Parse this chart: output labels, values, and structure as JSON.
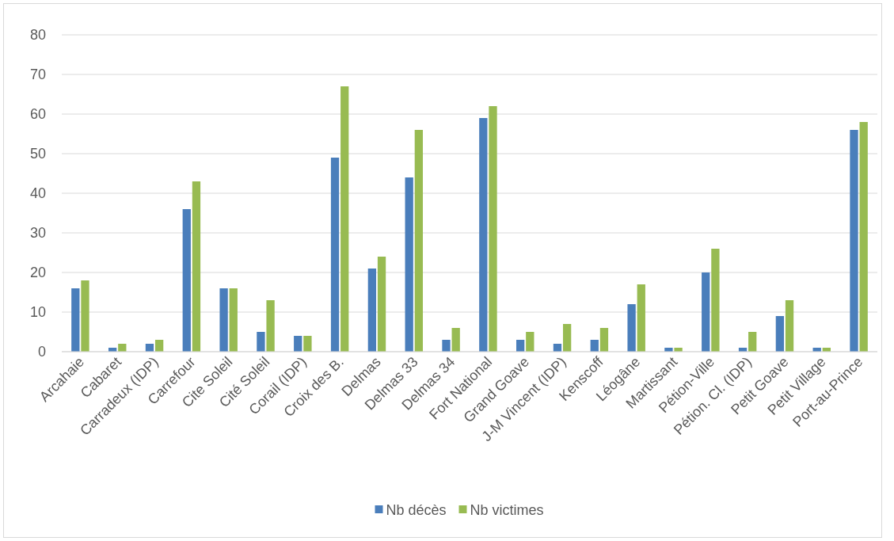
{
  "chart_data": {
    "type": "bar",
    "categories": [
      "Arcahaie",
      "Cabaret",
      "Carradeux (IDP)",
      "Carrefour",
      "Cite Soleil",
      "Cité Soleil",
      "Corail (IDP)",
      "Croix des B.",
      "Delmas",
      "Delmas 33",
      "Delmas 34",
      "Fort National",
      "Grand Goave",
      "J-M Vincent (IDP)",
      "Kenscoff",
      "Léogâne",
      "Martissant",
      "Pétion-Ville",
      "Pétion. Cl. (IDP)",
      "Petit Goave",
      "Petit Village",
      "Port-au-Prince"
    ],
    "series": [
      {
        "name": "Nb décès",
        "color": "#4a7ebb",
        "values": [
          16,
          1,
          2,
          36,
          16,
          5,
          4,
          49,
          21,
          44,
          3,
          59,
          3,
          2,
          3,
          12,
          1,
          20,
          1,
          9,
          1,
          56
        ]
      },
      {
        "name": "Nb victimes",
        "color": "#98bb52",
        "values": [
          18,
          2,
          3,
          43,
          16,
          13,
          4,
          67,
          24,
          56,
          6,
          62,
          5,
          7,
          6,
          17,
          1,
          26,
          5,
          13,
          1,
          58
        ]
      }
    ],
    "ylim": [
      0,
      80
    ],
    "yticks": [
      0,
      10,
      20,
      30,
      40,
      50,
      60,
      70,
      80
    ],
    "grid": "y",
    "legend": "bottom"
  }
}
